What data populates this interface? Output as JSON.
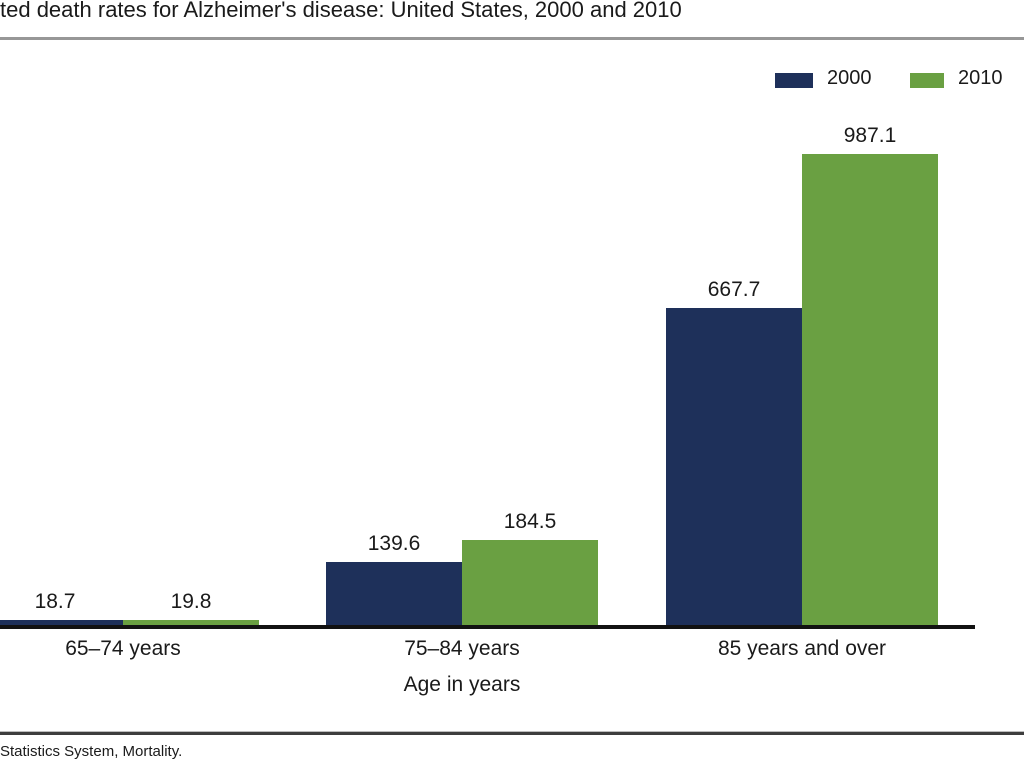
{
  "title": "ted death rates for Alzheimer's disease: United States, 2000 and 2010",
  "footer": "Statistics System, Mortality.",
  "legend": [
    {
      "label": "2000",
      "color": "#1E305A"
    },
    {
      "label": "2010",
      "color": "#6AA042"
    }
  ],
  "colors": {
    "series_2000": "#1E305A",
    "series_2010": "#6AA042",
    "axis_line": "#121212",
    "top_rule": "#979797",
    "footer_rule": "#3D3D3D"
  },
  "chart_data": {
    "type": "bar",
    "title": "ted death rates for Alzheimer's disease: United States, 2000 and 2010",
    "categories": [
      "65–74 years",
      "75–84 years",
      "85 years and over"
    ],
    "series": [
      {
        "name": "2000",
        "color": "#1E305A",
        "values": [
          18.7,
          139.6,
          667.7
        ]
      },
      {
        "name": "2010",
        "color": "#6AA042",
        "values": [
          19.8,
          184.5,
          987.1
        ]
      }
    ],
    "value_labels": [
      [
        "18.7",
        "139.6",
        "667.7"
      ],
      [
        "19.8",
        "184.5",
        "987.1"
      ]
    ],
    "xlabel": "Age in years",
    "ylabel": "",
    "ylim": [
      0,
      1200
    ],
    "grid": false,
    "y_axis_visible": false,
    "legend_position": "top-right"
  }
}
